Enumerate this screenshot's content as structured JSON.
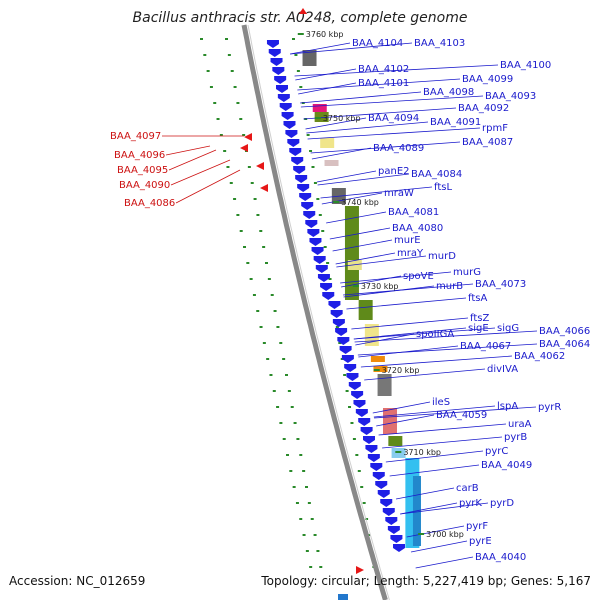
{
  "title": "Bacillus anthracis str. A0248, complete genome",
  "footer": {
    "accession": "Accession: NC_012659",
    "summary": "Topology: circular; Length: 5,227,419 bp; Genes: 5,167"
  },
  "colors": {
    "forward_label": "#1a1acc",
    "reverse_label": "#cc1111",
    "gene_arrow": "#1f1fe6",
    "backbone": "#888888",
    "tick_mark": "#2a8a2a"
  },
  "ticks": [
    "3760 kbp",
    "3750 kbp",
    "3740 kbp",
    "3730 kbp",
    "3720 kbp",
    "3710 kbp",
    "3700 kbp"
  ],
  "reverse_genes": [
    "BAA_4097",
    "BAA_4096",
    "BAA_4095",
    "BAA_4090",
    "BAA_4086"
  ],
  "forward_genes": [
    "BAA_4104",
    "BAA_4103",
    "BAA_4102",
    "BAA_4100",
    "BAA_4101",
    "BAA_4099",
    "BAA_4098",
    "BAA_4093",
    "BAA_4092",
    "BAA_4094",
    "BAA_4091",
    "rpmF",
    "BAA_4087",
    "BAA_4089",
    "panE2",
    "BAA_4084",
    "ftsL",
    "mraW",
    "BAA_4081",
    "BAA_4080",
    "murE",
    "mraY",
    "murD",
    "spoVE",
    "murG",
    "BAA_4073",
    "murB",
    "ftsA",
    "ftsZ",
    "sigE",
    "sigG",
    "BAA_4066",
    "spoIIGA",
    "BAA_4064",
    "BAA_4067",
    "BAA_4062",
    "divIVA",
    "ileS",
    "lspA",
    "pyrR",
    "BAA_4059",
    "uraA",
    "pyrB",
    "pyrC",
    "BAA_4049",
    "carB",
    "pyrK",
    "pyrD",
    "pyrF",
    "pyrE",
    "BAA_4040"
  ]
}
